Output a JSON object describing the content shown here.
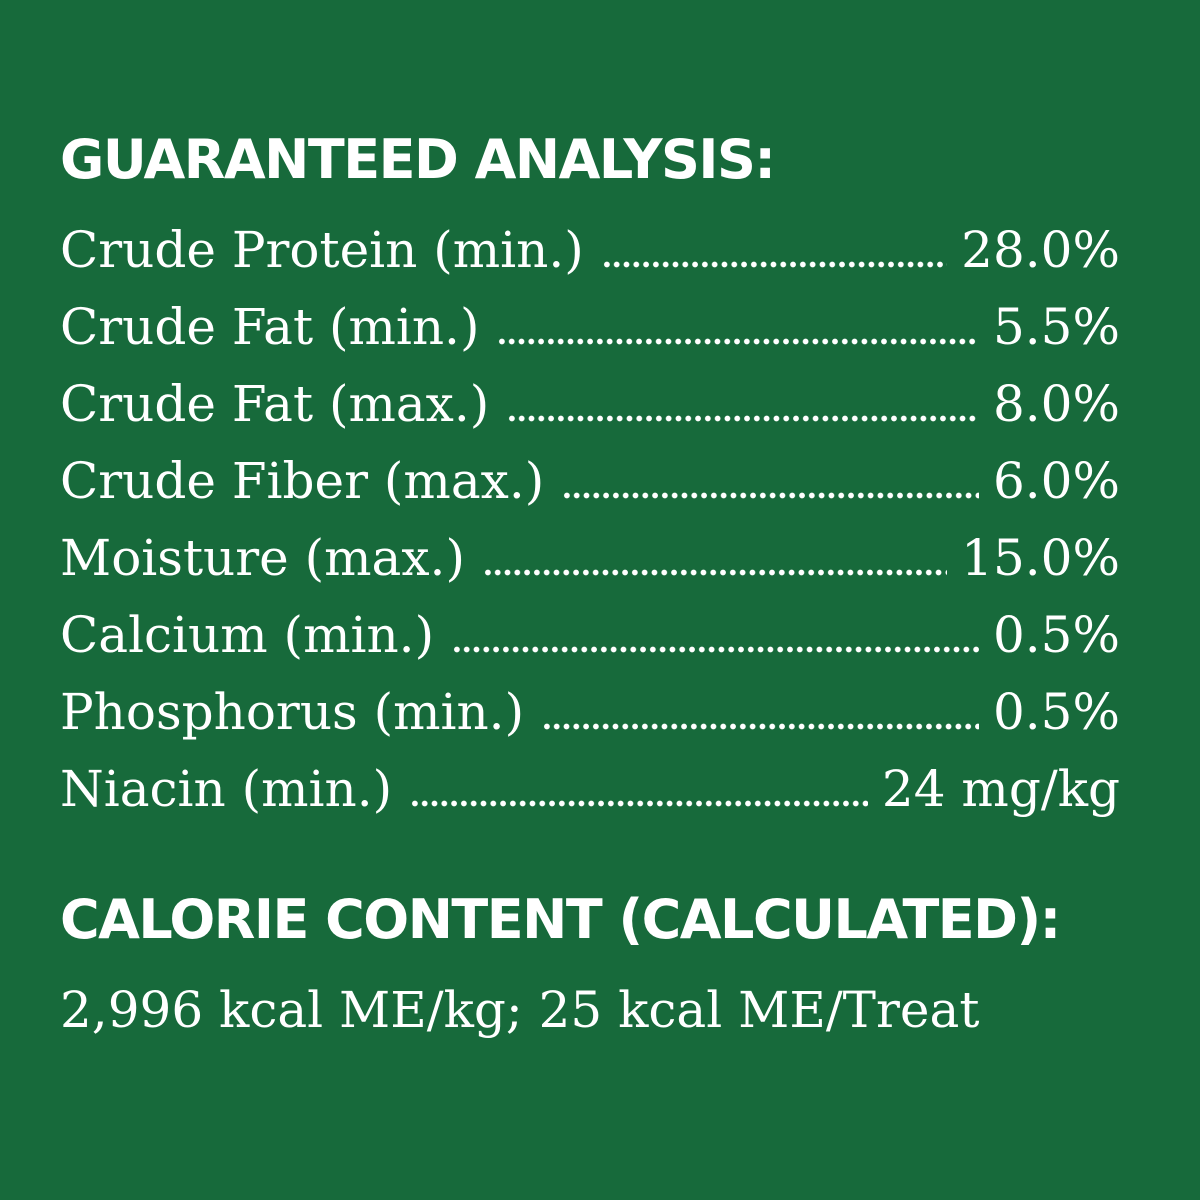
{
  "page": {
    "background_color": "#176a3b",
    "text_color": "#ffffff"
  },
  "guaranteed_analysis": {
    "title": "GUARANTEED ANALYSIS:",
    "rows": [
      {
        "label": "Crude Protein (min.)",
        "value": "28.0%"
      },
      {
        "label": "Crude Fat (min.)",
        "value": "5.5%"
      },
      {
        "label": "Crude Fat (max.)",
        "value": "8.0%"
      },
      {
        "label": "Crude Fiber (max.)",
        "value": "6.0%"
      },
      {
        "label": "Moisture (max.)",
        "value": "15.0%"
      },
      {
        "label": "Calcium (min.)",
        "value": "0.5%"
      },
      {
        "label": "Phosphorus (min.)",
        "value": "0.5%"
      },
      {
        "label": "Niacin (min.)",
        "value": "24 mg/kg"
      }
    ]
  },
  "calorie_content": {
    "title": "CALORIE CONTENT (CALCULATED):",
    "value": "2,996 kcal ME/kg; 25 kcal ME/Treat"
  }
}
